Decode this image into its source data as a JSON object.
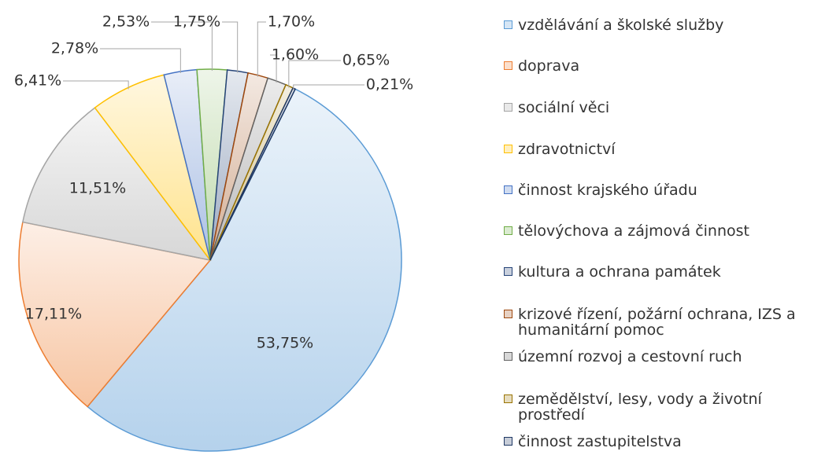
{
  "chart_data": {
    "type": "pie",
    "categories": [
      "vzdělávání a školské služby",
      "doprava",
      "sociální věci",
      "zdravotnictví",
      "činnost krajského úřadu",
      "tělovýchova a zájmová činnost",
      "kultura a ochrana památek",
      "krizové řízení, požární ochrana, IZS a humanitární pomoc",
      "územní rozvoj a cestovní ruch",
      "zemědělství, lesy, vody a životní prostředí",
      "činnost zastupitelstva"
    ],
    "values": [
      53.75,
      17.11,
      11.51,
      6.41,
      2.78,
      2.53,
      1.75,
      1.7,
      1.6,
      0.65,
      0.21
    ],
    "value_labels": [
      "53,75%",
      "17,11%",
      "11,51%",
      "6,41%",
      "2,78%",
      "2,53%",
      "1,75%",
      "1,70%",
      "1,60%",
      "0,65%",
      "0,21%"
    ],
    "colors": [
      "#5b9bd5",
      "#ed7d31",
      "#a5a5a5",
      "#ffc000",
      "#4472c4",
      "#70ad47",
      "#264478",
      "#9e480e",
      "#636363",
      "#997300",
      "#1f3864"
    ],
    "legend": "right"
  }
}
